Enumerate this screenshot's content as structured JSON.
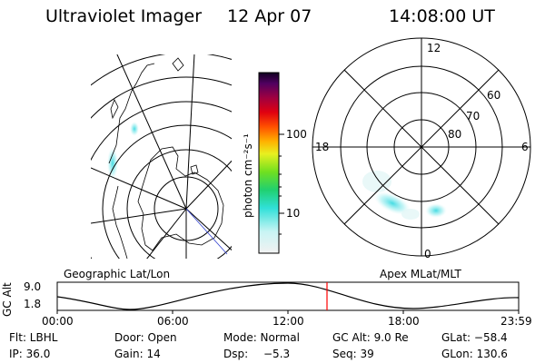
{
  "header": {
    "title": "Ultraviolet Imager",
    "date": "12 Apr 07",
    "time": "14:08:00 UT"
  },
  "geo_panel": {
    "label": "Geographic Lat/Lon"
  },
  "apex_panel": {
    "label": "Apex MLat/MLT",
    "mlt_labels": [
      "12",
      "18",
      "6",
      "0"
    ],
    "lat_labels": [
      "60",
      "70",
      "80"
    ]
  },
  "colorbar": {
    "unit_label": "photon cm⁻²s⁻¹",
    "ticks": [
      "100",
      "10"
    ]
  },
  "altitude_plot": {
    "ylabel": "GC Alt",
    "y_top": "9.0",
    "y_bottom": "1.8",
    "x_ticks": [
      "00:00",
      "06:00",
      "12:00",
      "18:00",
      "23:59"
    ],
    "marker_color": "#ff0000"
  },
  "info": {
    "filter": "Flt: LBHL",
    "door": "Door: Open",
    "mode": "Mode: Normal",
    "gc_alt": "GC Alt: 9.0 Re",
    "glat": "GLat: −58.4",
    "ip": "IP: 36.0",
    "gain": "Gain: 14",
    "dsp_label": "Dsp:",
    "dsp_value": "−5.3",
    "seq": "Seq: 39",
    "glon": "GLon: 130.6"
  }
}
